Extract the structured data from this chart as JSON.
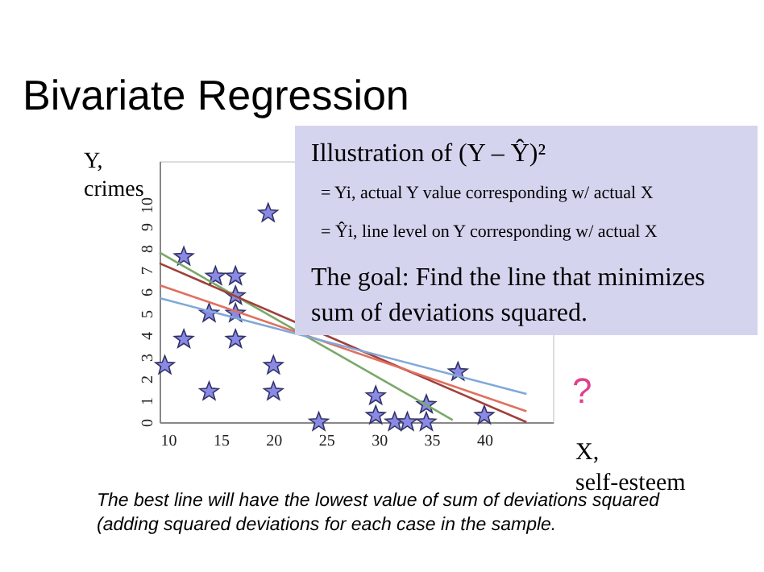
{
  "chart_data": {
    "type": "scatter",
    "title": "Bivariate Regression",
    "xlabel": "X, self-esteem",
    "ylabel": "Y, crimes",
    "x": [
      9.7,
      11.5,
      11.5,
      13.9,
      13.9,
      14.5,
      16.4,
      16.4,
      16.4,
      16.4,
      19.5,
      20.0,
      20.0,
      24.3,
      29.7,
      29.7,
      31.5,
      32.7,
      34.5,
      34.5,
      37.5,
      40.0
    ],
    "xlim": [
      9.2,
      46.5
    ],
    "ylim": [
      0,
      12
    ],
    "xticks": [
      10,
      15,
      20,
      25,
      30,
      35,
      40
    ],
    "yticks": [
      0,
      1,
      2,
      3,
      4,
      5,
      6,
      7,
      8,
      9,
      10
    ],
    "grid": false,
    "series": [
      {
        "marker": "star",
        "color": "#8a8ae6",
        "values": [
          2.6,
          7.6,
          3.8,
          1.4,
          5.0,
          6.7,
          6.7,
          5.8,
          5.0,
          3.8,
          9.6,
          2.6,
          1.4,
          0,
          1.2,
          0.3,
          0,
          0,
          0.8,
          0,
          2.3,
          0.3
        ]
      },
      {
        "type": "line",
        "x": [
          9.2,
          37
        ],
        "values": [
          7.8,
          0.1
        ],
        "color": "#7aa86a"
      },
      {
        "type": "line",
        "x": [
          9.2,
          44
        ],
        "values": [
          7.3,
          0
        ],
        "color": "#a0403a"
      },
      {
        "type": "line",
        "x": [
          9.2,
          44
        ],
        "values": [
          6.3,
          0.5
        ],
        "color": "#e07060"
      },
      {
        "type": "line",
        "x": [
          9.2,
          44
        ],
        "values": [
          5.7,
          1.3
        ],
        "color": "#80a8d8"
      }
    ],
    "annotations": [
      "Illustration of (Y – Ŷ)²",
      "= Yi, actual Y value corresponding w/ actual X",
      "= Ŷi, line level on Y corresponding w/ actual X",
      "The goal: Find the line that minimizes",
      "sum of deviations squared.",
      "?",
      "The best line will have the lowest value of sum of deviations squared",
      "(adding squared deviations for each case in the sample."
    ]
  }
}
